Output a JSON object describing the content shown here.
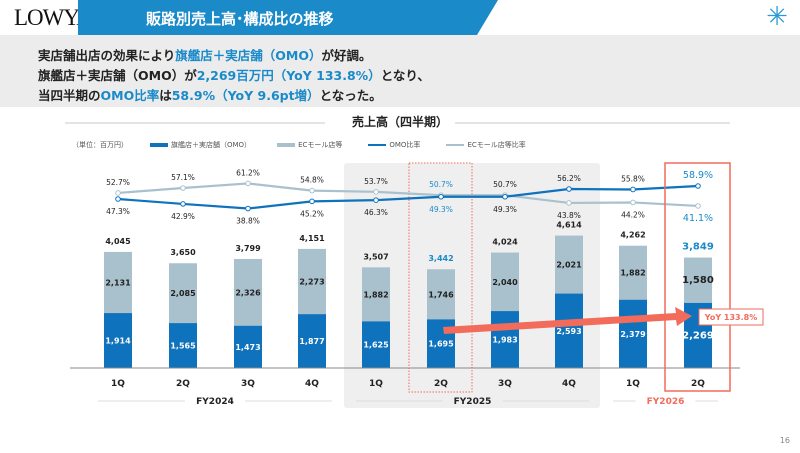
{
  "header": {
    "logo": "LOWYA",
    "title": "販路別売上高･構成比の推移",
    "star_icon": "sparkle-star-icon"
  },
  "summary": {
    "line1": [
      {
        "t": "実店舗出店の効果により",
        "hl": false
      },
      {
        "t": "旗艦店＋実店舗（OMO）",
        "hl": true
      },
      {
        "t": "が好調。",
        "hl": false
      }
    ],
    "line2": [
      {
        "t": "旗艦店＋実店舗（OMO）が",
        "hl": false
      },
      {
        "t": "2,269百万円（YoY 133.8%）",
        "hl": true
      },
      {
        "t": "となり、",
        "hl": false
      }
    ],
    "line3": [
      {
        "t": "当四半期の",
        "hl": false
      },
      {
        "t": "OMO比率",
        "hl": true
      },
      {
        "t": "は",
        "hl": false
      },
      {
        "t": "58.9%（YoY 9.6pt増）",
        "hl": true
      },
      {
        "t": "となった。",
        "hl": false
      }
    ]
  },
  "page_number": "16",
  "colors": {
    "accent": "#1a8ac9",
    "omo": "#0e72bd",
    "ec": "#a9c1cd",
    "highlight": "#f26b5b"
  },
  "chart_data": {
    "type": "bar+line",
    "title": "売上高（四半期）",
    "unit": "（単位：百万円）",
    "categories": [
      "1Q",
      "2Q",
      "3Q",
      "4Q",
      "1Q",
      "2Q",
      "3Q",
      "4Q",
      "1Q",
      "2Q"
    ],
    "fiscal_years": [
      {
        "label": "FY2024",
        "from": 0,
        "to": 3
      },
      {
        "label": "FY2025",
        "from": 4,
        "to": 7
      },
      {
        "label": "FY2026",
        "from": 8,
        "to": 9
      }
    ],
    "totals": [
      "4,045",
      "3,650",
      "3,799",
      "4,151",
      "3,507",
      "3,442",
      "4,024",
      "4,614",
      "4,262",
      "3,849"
    ],
    "series": [
      {
        "name": "旗艦店＋実店舗（OMO）",
        "type": "bar",
        "values": [
          1914,
          1565,
          1473,
          1877,
          1625,
          1695,
          1983,
          2593,
          2379,
          2269
        ]
      },
      {
        "name": "ECモール店等",
        "type": "bar",
        "values": [
          2131,
          2085,
          2326,
          2273,
          1882,
          1746,
          2040,
          2021,
          1882,
          1580
        ]
      },
      {
        "name": "OMO比率",
        "type": "line",
        "values": [
          47.3,
          42.9,
          38.8,
          45.2,
          46.3,
          49.3,
          49.3,
          56.2,
          55.8,
          58.9
        ]
      },
      {
        "name": "ECモール店等比率",
        "type": "line",
        "values": [
          52.7,
          57.1,
          61.2,
          54.8,
          53.7,
          50.7,
          50.7,
          43.8,
          44.2,
          41.1
        ]
      }
    ],
    "annotation": "YoY 133.8%"
  }
}
